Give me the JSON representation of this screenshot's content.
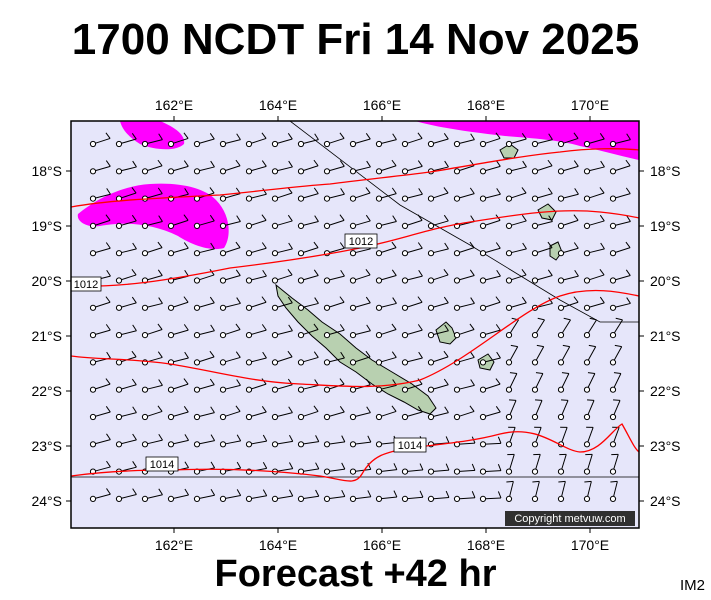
{
  "title": "1700 NCDT Fri 14 Nov 2025",
  "subtitle": "Forecast +42 hr",
  "image_code": "IM2",
  "copyright": "Copyright metvuw.com",
  "colors": {
    "ocean": "#e6e6fa",
    "land": "#b8d0b0",
    "isobar": "#ff0000",
    "rain": "#ff00ff"
  },
  "axes": {
    "top_labels": [
      "162°E",
      "164°E",
      "166°E",
      "168°E",
      "170°E"
    ],
    "bottom_labels": [
      "162°E",
      "164°E",
      "166°E",
      "168°E",
      "170°E"
    ],
    "left_labels": [
      "18°S",
      "19°S",
      "20°S",
      "21°S",
      "22°S",
      "23°S",
      "24°S"
    ],
    "right_labels": [
      "18°S",
      "19°S",
      "20°S",
      "21°S",
      "22°S",
      "23°S",
      "24°S"
    ],
    "lon_range": [
      160.1,
      171.0
    ],
    "lat_range": [
      -17.0,
      -24.4
    ]
  },
  "isobars": [
    {
      "label": "1012"
    },
    {
      "label": "1012"
    },
    {
      "label": "1014"
    },
    {
      "label": "1014"
    }
  ],
  "regions": [
    "New Caledonia",
    "Loyalty Islands"
  ]
}
